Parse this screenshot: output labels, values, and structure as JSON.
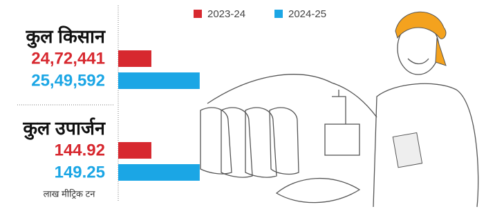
{
  "chart_data": [
    {
      "type": "bar",
      "orientation": "horizontal",
      "title": "कुल किसान",
      "xlim": [
        2419500,
        2563000
      ],
      "series": [
        {
          "name": "2023-24",
          "color": "#d7282f",
          "values": [
            2472441
          ],
          "value_labels": [
            "24,72,441"
          ]
        },
        {
          "name": "2024-25",
          "color": "#1ba6e5",
          "values": [
            2549592
          ],
          "value_labels": [
            "25,49,592"
          ]
        }
      ]
    },
    {
      "type": "bar",
      "orientation": "horizontal",
      "title": "कुल उपार्जन",
      "note": "लाख मीट्रिक टन",
      "xlim": [
        141.95,
        150
      ],
      "series": [
        {
          "name": "2023-24",
          "color": "#d7282f",
          "values": [
            144.92
          ],
          "value_labels": [
            "144.92"
          ]
        },
        {
          "name": "2024-25",
          "color": "#1ba6e5",
          "values": [
            149.25
          ],
          "value_labels": [
            "149.25"
          ]
        }
      ]
    }
  ]
}
